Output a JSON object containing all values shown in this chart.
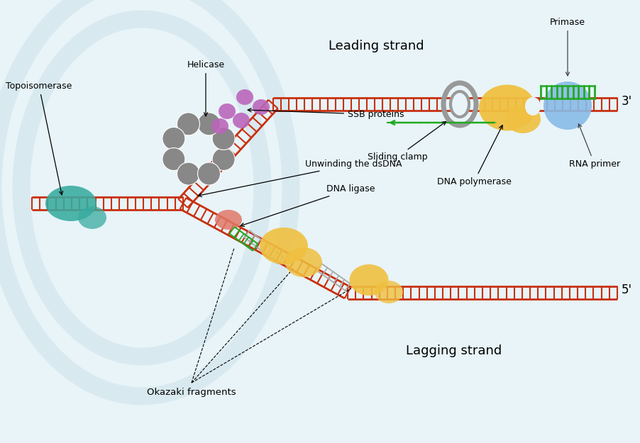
{
  "bg_color": "#e8f4f8",
  "dna_red": "#c83010",
  "teal_color": "#38aba0",
  "gray_helicase": "#888888",
  "purple_ssb": "#bb66bb",
  "yellow_pol": "#f0c040",
  "blue_primase": "#88bbe8",
  "green_rna": "#22aa22",
  "salmon_ligase": "#e07868",
  "gray_sliding": "#999999",
  "gray_okazaki": "#aaaaaa",
  "watermark_color": "#cce0ea",
  "title_leading": "Leading strand",
  "title_lagging": "Lagging strand",
  "label_topoisomerase": "Topoisomerase",
  "label_helicase": "Helicase",
  "label_ssb": "SSB proteins",
  "label_unwinding": "Unwinding the dsDNA",
  "label_dna_ligase": "DNA ligase",
  "label_okazaki": "Okazaki fragments",
  "label_sliding": "Sliding clamp",
  "label_dna_pol": "DNA polymerase",
  "label_rna_primer": "RNA primer",
  "label_primase": "Primase",
  "label_3prime": "3'",
  "label_5prime": "5'",
  "fig_w": 9.03,
  "fig_h": 6.25,
  "dpi": 100
}
